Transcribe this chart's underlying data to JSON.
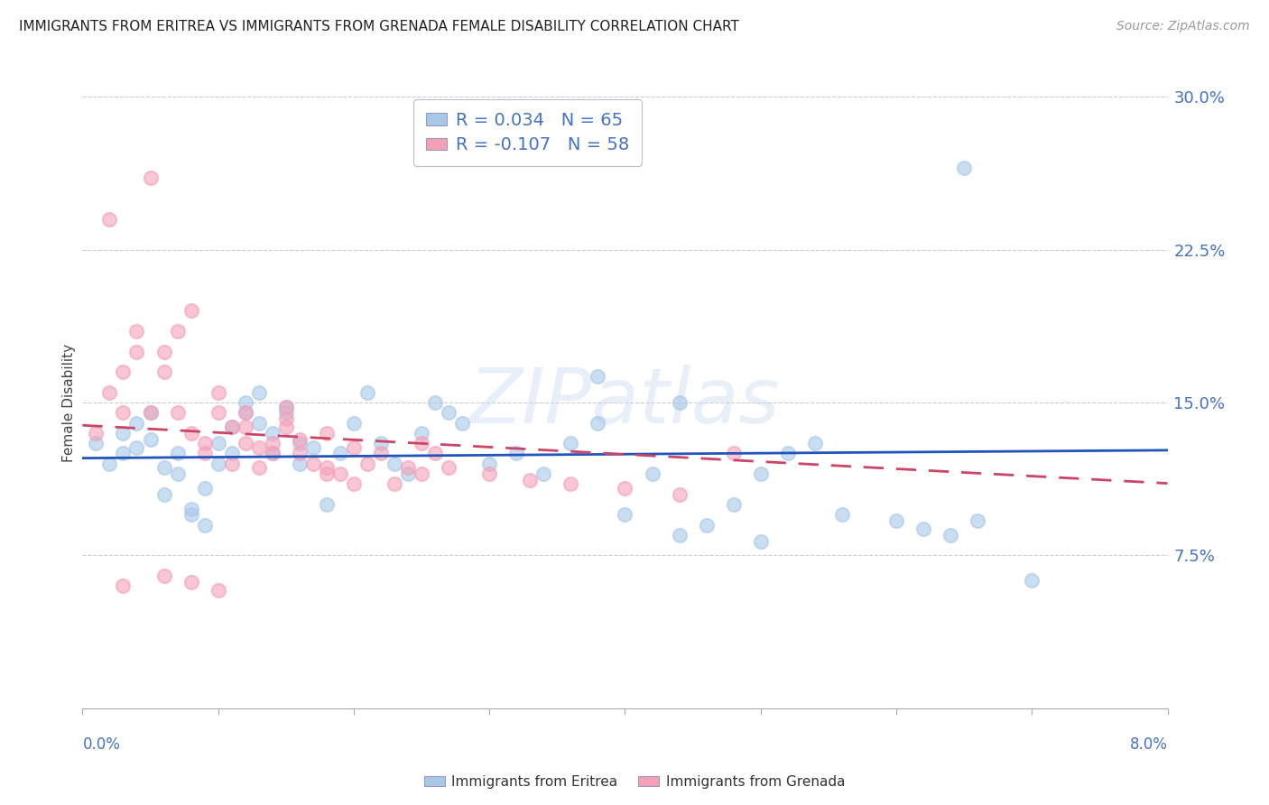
{
  "title": "IMMIGRANTS FROM ERITREA VS IMMIGRANTS FROM GRENADA FEMALE DISABILITY CORRELATION CHART",
  "source": "Source: ZipAtlas.com",
  "ylabel": "Female Disability",
  "r_eritrea": 0.034,
  "n_eritrea": 65,
  "r_grenada": -0.107,
  "n_grenada": 58,
  "color_eritrea": "#A8C8E8",
  "color_grenada": "#F4A0B8",
  "color_trendline_eritrea": "#2255BB",
  "color_trendline_grenada": "#CC4466",
  "xmin": 0.0,
  "xmax": 0.08,
  "ymin": 0.0,
  "ymax": 0.3,
  "yticks": [
    0.075,
    0.15,
    0.225,
    0.3
  ],
  "ytick_labels": [
    "7.5%",
    "15.0%",
    "22.5%",
    "30.0%"
  ],
  "eritrea_x": [
    0.001,
    0.002,
    0.003,
    0.003,
    0.004,
    0.004,
    0.005,
    0.005,
    0.006,
    0.006,
    0.007,
    0.007,
    0.008,
    0.008,
    0.009,
    0.009,
    0.01,
    0.01,
    0.011,
    0.011,
    0.012,
    0.012,
    0.013,
    0.013,
    0.014,
    0.014,
    0.015,
    0.015,
    0.016,
    0.016,
    0.017,
    0.018,
    0.019,
    0.02,
    0.021,
    0.022,
    0.023,
    0.024,
    0.025,
    0.026,
    0.027,
    0.028,
    0.03,
    0.032,
    0.034,
    0.036,
    0.038,
    0.04,
    0.042,
    0.044,
    0.046,
    0.048,
    0.05,
    0.052,
    0.054,
    0.056,
    0.06,
    0.062,
    0.064,
    0.066,
    0.038,
    0.044,
    0.05,
    0.065,
    0.07
  ],
  "eritrea_y": [
    0.13,
    0.12,
    0.135,
    0.125,
    0.14,
    0.128,
    0.145,
    0.132,
    0.118,
    0.105,
    0.125,
    0.115,
    0.095,
    0.098,
    0.108,
    0.09,
    0.12,
    0.13,
    0.138,
    0.125,
    0.145,
    0.15,
    0.155,
    0.14,
    0.125,
    0.135,
    0.148,
    0.145,
    0.13,
    0.12,
    0.128,
    0.1,
    0.125,
    0.14,
    0.155,
    0.13,
    0.12,
    0.115,
    0.135,
    0.15,
    0.145,
    0.14,
    0.12,
    0.125,
    0.115,
    0.13,
    0.14,
    0.095,
    0.115,
    0.085,
    0.09,
    0.1,
    0.115,
    0.125,
    0.13,
    0.095,
    0.092,
    0.088,
    0.085,
    0.092,
    0.163,
    0.15,
    0.082,
    0.265,
    0.063
  ],
  "grenada_x": [
    0.001,
    0.002,
    0.002,
    0.003,
    0.003,
    0.004,
    0.004,
    0.005,
    0.005,
    0.006,
    0.006,
    0.007,
    0.007,
    0.008,
    0.008,
    0.009,
    0.009,
    0.01,
    0.01,
    0.011,
    0.011,
    0.012,
    0.012,
    0.013,
    0.013,
    0.014,
    0.014,
    0.015,
    0.015,
    0.016,
    0.016,
    0.017,
    0.018,
    0.019,
    0.02,
    0.021,
    0.022,
    0.023,
    0.024,
    0.025,
    0.026,
    0.027,
    0.03,
    0.033,
    0.036,
    0.04,
    0.044,
    0.048,
    0.003,
    0.006,
    0.008,
    0.01,
    0.012,
    0.015,
    0.018,
    0.02,
    0.025,
    0.018
  ],
  "grenada_y": [
    0.135,
    0.155,
    0.24,
    0.145,
    0.165,
    0.175,
    0.185,
    0.145,
    0.26,
    0.175,
    0.165,
    0.185,
    0.145,
    0.195,
    0.135,
    0.125,
    0.13,
    0.145,
    0.155,
    0.12,
    0.138,
    0.145,
    0.13,
    0.128,
    0.118,
    0.125,
    0.13,
    0.142,
    0.148,
    0.132,
    0.125,
    0.12,
    0.118,
    0.115,
    0.11,
    0.12,
    0.125,
    0.11,
    0.118,
    0.115,
    0.125,
    0.118,
    0.115,
    0.112,
    0.11,
    0.108,
    0.105,
    0.125,
    0.06,
    0.065,
    0.062,
    0.058,
    0.138,
    0.138,
    0.135,
    0.128,
    0.13,
    0.115
  ]
}
